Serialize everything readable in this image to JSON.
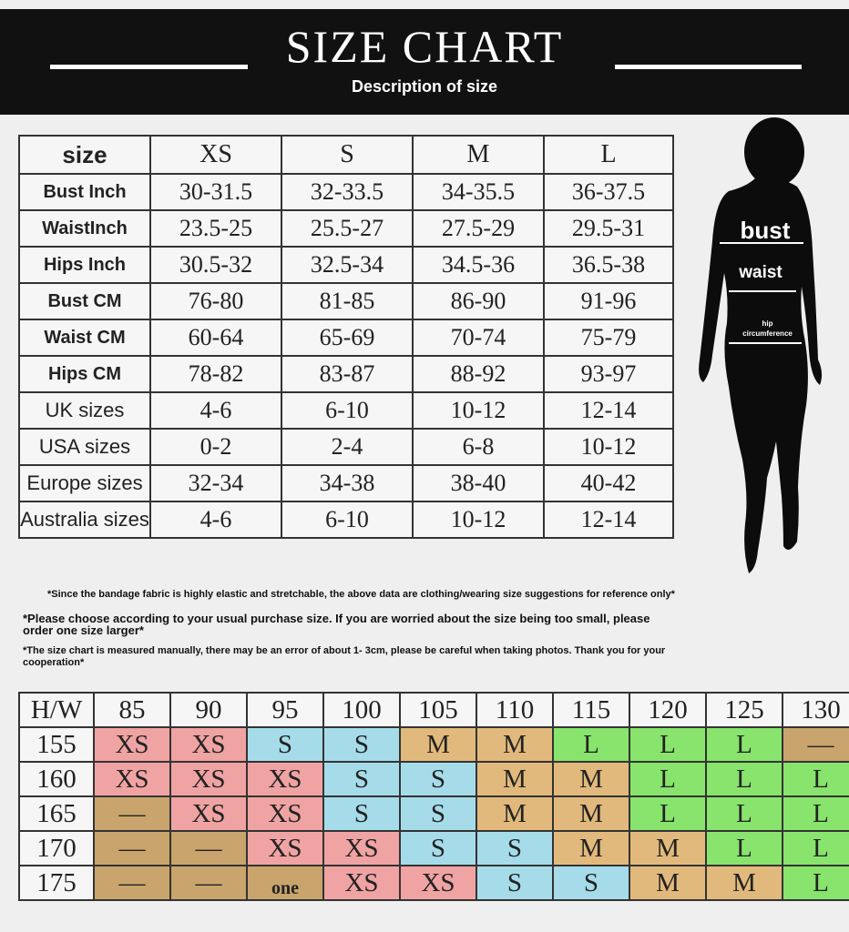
{
  "header": {
    "title": "SIZE CHART",
    "subtitle": "Description of size"
  },
  "size_table": {
    "header": [
      "size",
      "XS",
      "S",
      "M",
      "L"
    ],
    "rows": [
      [
        "Bust Inch",
        "30-31.5",
        "32-33.5",
        "34-35.5",
        "36-37.5"
      ],
      [
        "WaistInch",
        "23.5-25",
        "25.5-27",
        "27.5-29",
        "29.5-31"
      ],
      [
        "Hips Inch",
        "30.5-32",
        "32.5-34",
        "34.5-36",
        "36.5-38"
      ],
      [
        "Bust CM",
        "76-80",
        "81-85",
        "86-90",
        "91-96"
      ],
      [
        "Waist CM",
        "60-64",
        "65-69",
        "70-74",
        "75-79"
      ],
      [
        "Hips CM",
        "78-82",
        "83-87",
        "88-92",
        "93-97"
      ],
      [
        "UK sizes",
        "4-6",
        "6-10",
        "10-12",
        "12-14"
      ],
      [
        "USA sizes",
        "0-2",
        "2-4",
        "6-8",
        "10-12"
      ],
      [
        "Europe sizes",
        "32-34",
        "34-38",
        "38-40",
        "40-42"
      ],
      [
        "Australia sizes",
        "4-6",
        "6-10",
        "10-12",
        "12-14"
      ]
    ]
  },
  "figure": {
    "bust": "bust",
    "waist": "waist",
    "hip": "hip circumference"
  },
  "notes": [
    "*Since the bandage fabric is highly elastic and stretchable, the above data are clothing/wearing size suggestions for reference only*",
    "*Please choose according to your usual purchase size. If you are worried about the size being too small, please order one size larger*",
    "*The size chart is measured manually, there may be an error of about 1- 3cm, please be careful when taking photos. Thank you for your cooperation*"
  ],
  "hw_table": {
    "header": [
      "H/W",
      85,
      90,
      95,
      100,
      105,
      110,
      115,
      120,
      125,
      130
    ],
    "rows": [
      [
        155,
        "XS",
        "XS",
        "S",
        "S",
        "M",
        "M",
        "L",
        "L",
        "L",
        "—"
      ],
      [
        160,
        "XS",
        "XS",
        "XS",
        "S",
        "S",
        "M",
        "M",
        "L",
        "L",
        "L"
      ],
      [
        165,
        "—",
        "XS",
        "XS",
        "S",
        "S",
        "M",
        "M",
        "L",
        "L",
        "L"
      ],
      [
        170,
        "—",
        "—",
        "XS",
        "XS",
        "S",
        "S",
        "M",
        "M",
        "L",
        "L"
      ],
      [
        175,
        "—",
        "—",
        "one",
        "XS",
        "XS",
        "S",
        "S",
        "M",
        "M",
        "L"
      ]
    ],
    "cell_colors": {
      "XS": "#f0a3a3",
      "S": "#a6dcea",
      "M": "#e2b97c",
      "L": "#88e46c",
      "—": "#c9a46c",
      "one": "#c9a46c"
    }
  }
}
